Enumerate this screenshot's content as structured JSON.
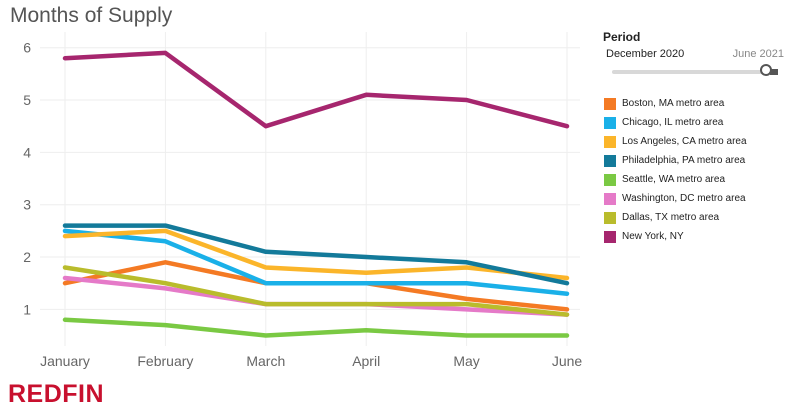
{
  "chart_data": {
    "type": "line",
    "title": "Months of Supply",
    "categories": [
      "January",
      "February",
      "March",
      "April",
      "May",
      "June"
    ],
    "ylim": [
      0.3,
      6.3
    ],
    "yticks": [
      1,
      2,
      3,
      4,
      5,
      6
    ],
    "grid": true,
    "legend_position": "right",
    "series": [
      {
        "name": "Boston, MA metro area",
        "color": "#f47a24",
        "values": [
          1.5,
          1.9,
          1.5,
          1.5,
          1.2,
          1.0
        ]
      },
      {
        "name": "Chicago, IL metro area",
        "color": "#1ab0e8",
        "values": [
          2.5,
          2.3,
          1.5,
          1.5,
          1.5,
          1.3
        ]
      },
      {
        "name": "Los Angeles, CA metro area",
        "color": "#fbb52a",
        "values": [
          2.4,
          2.5,
          1.8,
          1.7,
          1.8,
          1.6
        ]
      },
      {
        "name": "Philadelphia, PA metro area",
        "color": "#137a9a",
        "values": [
          2.6,
          2.6,
          2.1,
          2.0,
          1.9,
          1.5
        ]
      },
      {
        "name": "Seattle, WA metro area",
        "color": "#7ac943",
        "values": [
          0.8,
          0.7,
          0.5,
          0.6,
          0.5,
          0.5
        ]
      },
      {
        "name": "Washington, DC metro area",
        "color": "#e57ac8",
        "values": [
          1.6,
          1.4,
          1.1,
          1.1,
          1.0,
          0.9
        ]
      },
      {
        "name": "Dallas, TX metro area",
        "color": "#b9bc2c",
        "values": [
          1.8,
          1.5,
          1.1,
          1.1,
          1.1,
          0.9
        ]
      },
      {
        "name": "New York, NY",
        "color": "#a6266e",
        "values": [
          5.8,
          5.9,
          4.5,
          5.1,
          5.0,
          4.5
        ]
      }
    ]
  },
  "filter": {
    "title": "Period",
    "start": "December 2020",
    "end": "June 2021",
    "value": 1.0
  },
  "brand": "REDFIN"
}
